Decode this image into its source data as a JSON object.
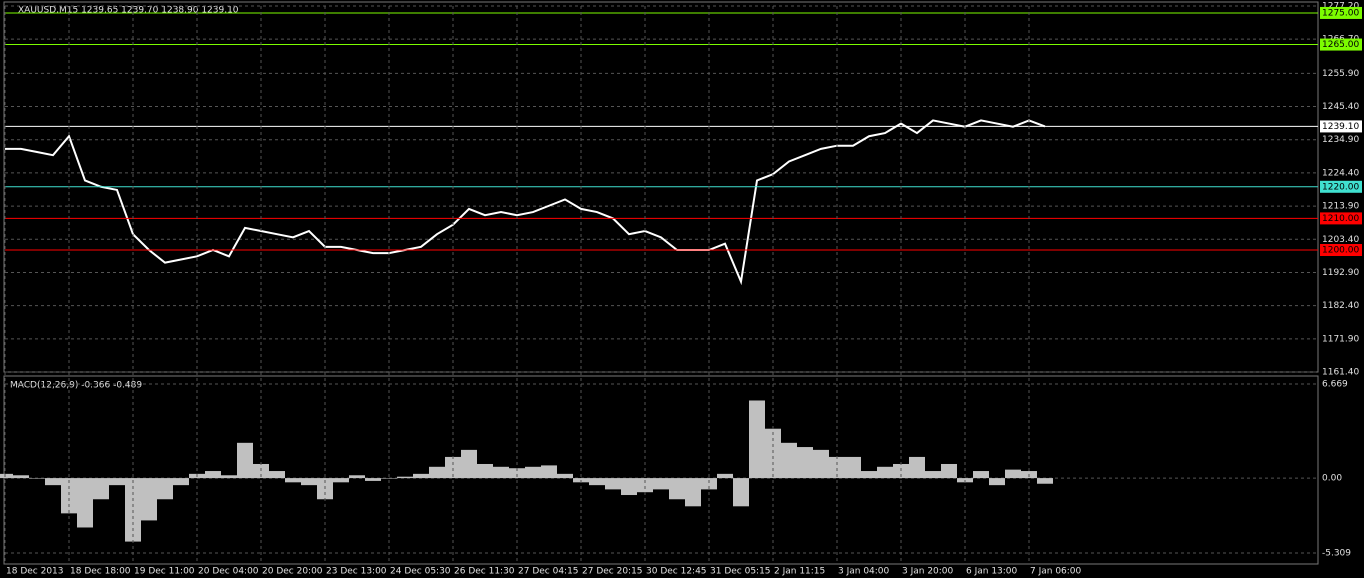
{
  "chart_data": [
    {
      "type": "line",
      "title": "XAUUSD,M15  1239.65 1239.70 1238.90 1239.10",
      "color": "#ffffff",
      "values": [
        1232,
        1232,
        1231,
        1230,
        1236,
        1222,
        1220,
        1219,
        1205,
        1200,
        1196,
        1197,
        1198,
        1200,
        1198,
        1207,
        1206,
        1205,
        1204,
        1206,
        1201,
        1201,
        1200,
        1199,
        1199,
        1200,
        1201,
        1205,
        1208,
        1213,
        1211,
        1212,
        1211,
        1212,
        1214,
        1216,
        1213,
        1212,
        1210,
        1205,
        1206,
        1204,
        1200,
        1200,
        1200,
        1202,
        1190,
        1222,
        1224,
        1228,
        1230,
        1232,
        1233,
        1233,
        1236,
        1237,
        1240,
        1237,
        1241,
        1240,
        1239,
        1241,
        1240,
        1239,
        1241,
        1239.1
      ],
      "ylim": [
        1161.4,
        1277.2
      ],
      "yticks": [
        {
          "value": 1277.2,
          "label": "1277.20"
        },
        {
          "value": 1266.7,
          "label": "1266.70"
        },
        {
          "value": 1255.9,
          "label": "1255.90"
        },
        {
          "value": 1245.4,
          "label": "1245.40"
        },
        {
          "value": 1234.9,
          "label": "1234.90"
        },
        {
          "value": 1224.4,
          "label": "1224.40"
        },
        {
          "value": 1213.9,
          "label": "1213.90"
        },
        {
          "value": 1203.4,
          "label": "1203.40"
        },
        {
          "value": 1192.9,
          "label": "1192.90"
        },
        {
          "value": 1182.4,
          "label": "1182.40"
        },
        {
          "value": 1171.9,
          "label": "1171.90"
        },
        {
          "value": 1161.4,
          "label": "1161.40"
        }
      ],
      "levels": [
        {
          "value": 1275,
          "label": "1275.00",
          "color": "#7cfc00"
        },
        {
          "value": 1265,
          "label": "1265.00",
          "color": "#7cfc00"
        },
        {
          "value": 1239.1,
          "label": "1239.10",
          "color": "#ffffff"
        },
        {
          "value": 1220,
          "label": "1220.00",
          "color": "#40e0d0"
        },
        {
          "value": 1210,
          "label": "1210.00",
          "color": "#ff0000"
        },
        {
          "value": 1200,
          "label": "1200.00",
          "color": "#ff0000"
        }
      ],
      "grid": true
    },
    {
      "type": "bar",
      "title": "MACD(12,26,9) -0.366 -0.489",
      "color": "#c0c0c0",
      "categories": [
        "18 Dec 2013",
        null,
        null,
        null,
        "18 Dec 18:00",
        null,
        null,
        null,
        "19 Dec 11:00",
        null,
        null,
        null,
        "20 Dec 04:00",
        null,
        null,
        null,
        "20 Dec 20:00",
        null,
        null,
        null,
        "23 Dec 13:00",
        null,
        null,
        null,
        "24 Dec 05:30",
        null,
        null,
        null,
        "26 Dec 11:30",
        null,
        null,
        null,
        "27 Dec 04:15",
        null,
        null,
        null,
        "27 Dec 20:15",
        null,
        null,
        null,
        "30 Dec 12:45",
        null,
        null,
        null,
        "31 Dec 05:15",
        null,
        null,
        null,
        "2 Jan 11:15",
        null,
        null,
        null,
        "3 Jan 04:00",
        null,
        null,
        null,
        "3 Jan 20:00",
        null,
        null,
        null,
        "6 Jan 13:00",
        null,
        null,
        null,
        "7 Jan 06:00",
        null
      ],
      "values": [
        0.3,
        0.2,
        0.0,
        -0.5,
        -2.5,
        -3.5,
        -1.5,
        -0.5,
        -4.5,
        -3,
        -1.5,
        -0.5,
        0.3,
        0.5,
        0.2,
        2.5,
        1.0,
        0.5,
        -0.3,
        -0.5,
        -1.5,
        -0.3,
        0.2,
        -0.2,
        0.0,
        0.1,
        0.3,
        0.8,
        1.5,
        2.0,
        1.0,
        0.8,
        0.7,
        0.8,
        0.9,
        0.3,
        -0.3,
        -0.5,
        -0.8,
        -1.2,
        -1.0,
        -0.8,
        -1.5,
        -2.0,
        -0.8,
        0.3,
        -2.0,
        5.5,
        3.5,
        2.5,
        2.2,
        2.0,
        1.5,
        1.5,
        0.5,
        0.8,
        1.0,
        1.5,
        0.5,
        1.0,
        -0.3,
        0.5,
        -0.5,
        0.6,
        0.5,
        -0.4
      ],
      "ylim": [
        -5.309,
        6.669
      ],
      "yticks": [
        6.669,
        {
          "value": 0,
          "label": "0.00"
        },
        -5.309
      ],
      "grid": true
    }
  ]
}
